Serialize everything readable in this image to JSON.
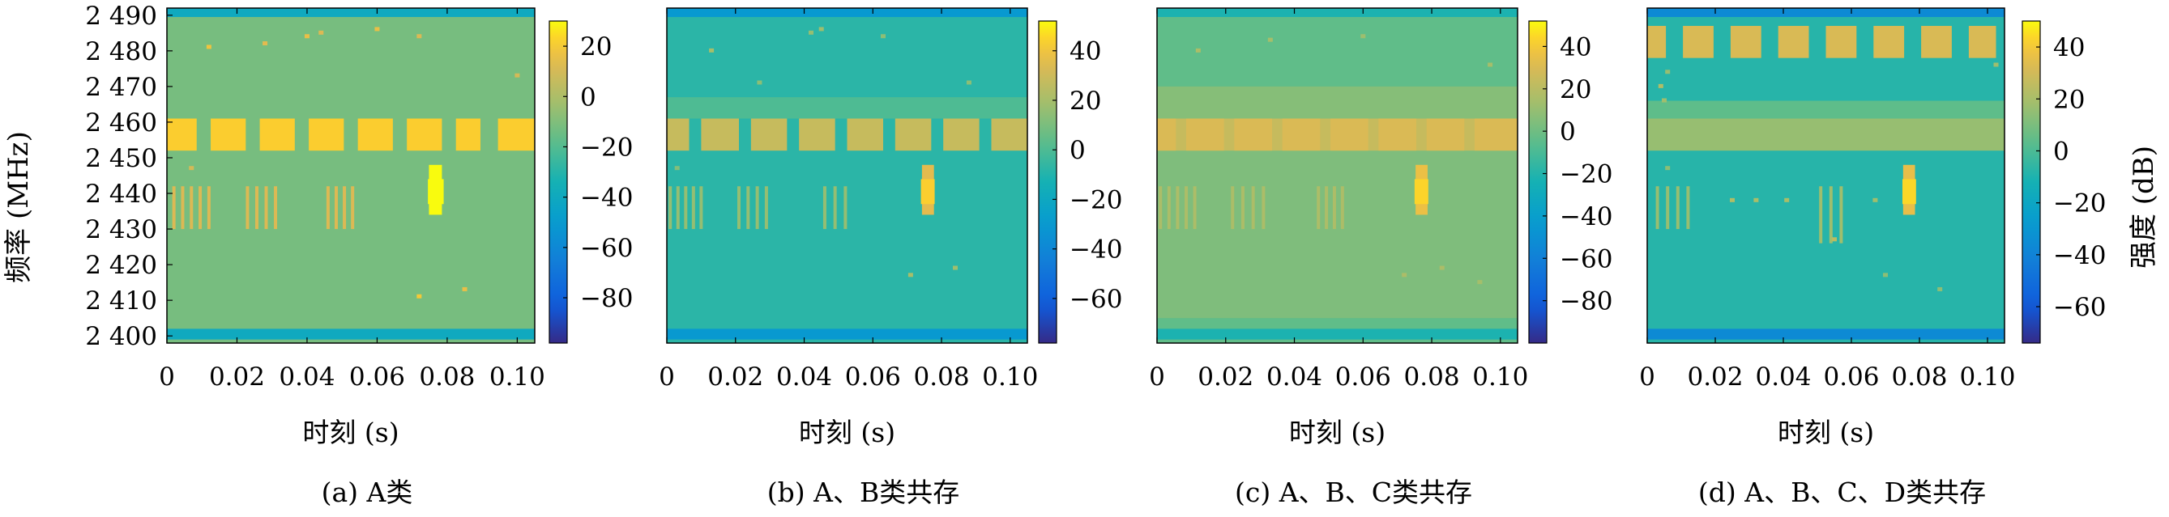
{
  "figure": {
    "y_axis_label": "频率 (MHz)",
    "colorbar_label": "强度 (dB)"
  },
  "chart_data": [
    {
      "type": "heatmap",
      "caption": "(a) A类",
      "xlabel": "时刻 (s)",
      "ylabel": "频率 (MHz)",
      "x_ticks": [
        "0",
        "0.02",
        "0.04",
        "0.06",
        "0.08",
        "0.10"
      ],
      "y_ticks": [
        "2 400",
        "2 410",
        "2 420",
        "2 430",
        "2 440",
        "2 450",
        "2 460",
        "2 470",
        "2 480",
        "2 490"
      ],
      "xlim": [
        0,
        0.105
      ],
      "ylim": [
        2398,
        2492
      ],
      "colorbar": {
        "ticks": [
          "20",
          "0",
          "-20",
          "-40",
          "-60",
          "-80"
        ],
        "range": [
          -98,
          30
        ]
      },
      "background_db": -12,
      "edge_bands": [
        {
          "y": [
            2399,
            2402
          ],
          "value": -40
        },
        {
          "y": [
            2489.5,
            2492
          ],
          "value": -40
        }
      ],
      "shaded_bands": [],
      "bursts": [
        {
          "x": [
            0.0,
            0.0085
          ],
          "y": [
            2452,
            2461
          ],
          "value": 22
        },
        {
          "x": [
            0.0125,
            0.0225
          ],
          "y": [
            2452,
            2461
          ],
          "value": 22
        },
        {
          "x": [
            0.0265,
            0.0365
          ],
          "y": [
            2452,
            2461
          ],
          "value": 22
        },
        {
          "x": [
            0.0405,
            0.0505
          ],
          "y": [
            2452,
            2461
          ],
          "value": 22
        },
        {
          "x": [
            0.0545,
            0.0645
          ],
          "y": [
            2452,
            2461
          ],
          "value": 22
        },
        {
          "x": [
            0.0685,
            0.0785
          ],
          "y": [
            2452,
            2461
          ],
          "value": 22
        },
        {
          "x": [
            0.0825,
            0.0895
          ],
          "y": [
            2452,
            2461
          ],
          "value": 22
        },
        {
          "x": [
            0.0945,
            0.105
          ],
          "y": [
            2452,
            2461
          ],
          "value": 22
        },
        {
          "x": [
            0.0748,
            0.0785
          ],
          "y": [
            2434,
            2448
          ],
          "value": 32
        },
        {
          "x": [
            0.0745,
            0.079
          ],
          "y": [
            2437,
            2444
          ],
          "value": 38
        }
      ],
      "stripe_groups": [
        {
          "x": [
            0.002,
            0.012
          ],
          "y": [
            2430,
            2442
          ],
          "n": 5,
          "value": 12
        },
        {
          "x": [
            0.023,
            0.031
          ],
          "y": [
            2430,
            2442
          ],
          "n": 4,
          "value": 12
        },
        {
          "x": [
            0.046,
            0.053
          ],
          "y": [
            2430,
            2442
          ],
          "n": 4,
          "value": 12
        }
      ],
      "speckles": [
        {
          "x": 0.012,
          "y": 2481,
          "value": 18
        },
        {
          "x": 0.028,
          "y": 2482,
          "value": 14
        },
        {
          "x": 0.04,
          "y": 2484,
          "value": 16
        },
        {
          "x": 0.044,
          "y": 2485,
          "value": 12
        },
        {
          "x": 0.06,
          "y": 2486,
          "value": 16
        },
        {
          "x": 0.072,
          "y": 2484,
          "value": 12
        },
        {
          "x": 0.1,
          "y": 2473,
          "value": 10
        },
        {
          "x": 0.007,
          "y": 2447,
          "value": 10
        },
        {
          "x": 0.072,
          "y": 2411,
          "value": 20
        },
        {
          "x": 0.085,
          "y": 2413,
          "value": 16
        }
      ]
    },
    {
      "type": "heatmap",
      "caption": "(b) A、B类共存",
      "xlabel": "时刻 (s)",
      "ylabel": "",
      "x_ticks": [
        "0",
        "0.02",
        "0.04",
        "0.06",
        "0.08",
        "0.10"
      ],
      "y_ticks": [],
      "xlim": [
        0,
        0.105
      ],
      "ylim": [
        2398,
        2492
      ],
      "colorbar": {
        "ticks": [
          "40",
          "20",
          "0",
          "-20",
          "-40",
          "-60"
        ],
        "range": [
          -78,
          52
        ]
      },
      "background_db": -8,
      "edge_bands": [
        {
          "y": [
            2399,
            2402
          ],
          "value": -30
        },
        {
          "y": [
            2489.5,
            2492
          ],
          "value": -30
        }
      ],
      "shaded_bands": [
        {
          "y": [
            2461,
            2467
          ],
          "value": 0
        }
      ],
      "bursts": [
        {
          "x": [
            0.0,
            0.0065
          ],
          "y": [
            2452,
            2461
          ],
          "value": 28
        },
        {
          "x": [
            0.01,
            0.021
          ],
          "y": [
            2452,
            2461
          ],
          "value": 28
        },
        {
          "x": [
            0.0245,
            0.035
          ],
          "y": [
            2452,
            2461
          ],
          "value": 28
        },
        {
          "x": [
            0.0385,
            0.049
          ],
          "y": [
            2452,
            2461
          ],
          "value": 28
        },
        {
          "x": [
            0.0525,
            0.063
          ],
          "y": [
            2452,
            2461
          ],
          "value": 28
        },
        {
          "x": [
            0.0665,
            0.077
          ],
          "y": [
            2452,
            2461
          ],
          "value": 28
        },
        {
          "x": [
            0.0805,
            0.091
          ],
          "y": [
            2452,
            2461
          ],
          "value": 28
        },
        {
          "x": [
            0.0945,
            0.105
          ],
          "y": [
            2452,
            2461
          ],
          "value": 28
        },
        {
          "x": [
            0.0743,
            0.0778
          ],
          "y": [
            2434,
            2448
          ],
          "value": 36
        },
        {
          "x": [
            0.074,
            0.078
          ],
          "y": [
            2437,
            2444
          ],
          "value": 44
        }
      ],
      "stripe_groups": [
        {
          "x": [
            0.001,
            0.01
          ],
          "y": [
            2430,
            2442
          ],
          "n": 5,
          "value": 16
        },
        {
          "x": [
            0.021,
            0.029
          ],
          "y": [
            2430,
            2442
          ],
          "n": 4,
          "value": 16
        },
        {
          "x": [
            0.046,
            0.052
          ],
          "y": [
            2430,
            2442
          ],
          "n": 3,
          "value": 16
        }
      ],
      "speckles": [
        {
          "x": 0.013,
          "y": 2480,
          "value": 20
        },
        {
          "x": 0.042,
          "y": 2485,
          "value": 16
        },
        {
          "x": 0.045,
          "y": 2486,
          "value": 18
        },
        {
          "x": 0.063,
          "y": 2484,
          "value": 14
        },
        {
          "x": 0.027,
          "y": 2471,
          "value": 14
        },
        {
          "x": 0.088,
          "y": 2471,
          "value": 14
        },
        {
          "x": 0.003,
          "y": 2447,
          "value": 12
        },
        {
          "x": 0.071,
          "y": 2417,
          "value": 20
        },
        {
          "x": 0.084,
          "y": 2419,
          "value": 18
        }
      ]
    },
    {
      "type": "heatmap",
      "caption": "(c) A、B、C类共存",
      "xlabel": "时刻 (s)",
      "ylabel": "",
      "x_ticks": [
        "0",
        "0.02",
        "0.04",
        "0.06",
        "0.08",
        "0.10"
      ],
      "y_ticks": [],
      "xlim": [
        0,
        0.105
      ],
      "ylim": [
        2398,
        2492
      ],
      "colorbar": {
        "ticks": [
          "40",
          "20",
          "0",
          "-20",
          "-40",
          "-60",
          "-80"
        ],
        "range": [
          -100,
          52
        ]
      },
      "background_db": -4,
      "edge_bands": [
        {
          "y": [
            2399,
            2402
          ],
          "value": -22
        },
        {
          "y": [
            2489.5,
            2492
          ],
          "value": -22
        }
      ],
      "shaded_bands": [
        {
          "y": [
            2405,
            2452
          ],
          "value": 4
        },
        {
          "y": [
            2461,
            2470
          ],
          "value": 6
        }
      ],
      "bursts": [
        {
          "x": [
            0.0,
            0.105
          ],
          "y": [
            2452,
            2461
          ],
          "value": 24
        },
        {
          "x": [
            0.0,
            0.0055
          ],
          "y": [
            2452,
            2461
          ],
          "value": 30
        },
        {
          "x": [
            0.0085,
            0.0195
          ],
          "y": [
            2452,
            2461
          ],
          "value": 30
        },
        {
          "x": [
            0.0225,
            0.0335
          ],
          "y": [
            2452,
            2461
          ],
          "value": 30
        },
        {
          "x": [
            0.0365,
            0.0475
          ],
          "y": [
            2452,
            2461
          ],
          "value": 30
        },
        {
          "x": [
            0.0505,
            0.0615
          ],
          "y": [
            2452,
            2461
          ],
          "value": 30
        },
        {
          "x": [
            0.0645,
            0.0755
          ],
          "y": [
            2452,
            2461
          ],
          "value": 30
        },
        {
          "x": [
            0.0785,
            0.0895
          ],
          "y": [
            2452,
            2461
          ],
          "value": 30
        },
        {
          "x": [
            0.0925,
            0.105
          ],
          "y": [
            2452,
            2461
          ],
          "value": 30
        },
        {
          "x": [
            0.0753,
            0.0788
          ],
          "y": [
            2434,
            2448
          ],
          "value": 36
        },
        {
          "x": [
            0.075,
            0.079
          ],
          "y": [
            2437,
            2444
          ],
          "value": 44
        }
      ],
      "stripe_groups": [
        {
          "x": [
            0.001,
            0.011
          ],
          "y": [
            2430,
            2442
          ],
          "n": 5,
          "value": 16
        },
        {
          "x": [
            0.022,
            0.031
          ],
          "y": [
            2430,
            2442
          ],
          "n": 4,
          "value": 16
        },
        {
          "x": [
            0.047,
            0.054
          ],
          "y": [
            2430,
            2442
          ],
          "n": 4,
          "value": 16
        }
      ],
      "speckles": [
        {
          "x": 0.012,
          "y": 2480,
          "value": 16
        },
        {
          "x": 0.033,
          "y": 2483,
          "value": 14
        },
        {
          "x": 0.06,
          "y": 2484,
          "value": 12
        },
        {
          "x": 0.097,
          "y": 2476,
          "value": 14
        },
        {
          "x": 0.072,
          "y": 2417,
          "value": 16
        },
        {
          "x": 0.083,
          "y": 2419,
          "value": 16
        },
        {
          "x": 0.094,
          "y": 2415,
          "value": 14
        }
      ]
    },
    {
      "type": "heatmap",
      "caption": "(d) A、B、C、D类共存",
      "xlabel": "时刻 (s)",
      "ylabel": "",
      "x_ticks": [
        "0",
        "0.02",
        "0.04",
        "0.06",
        "0.08",
        "0.10"
      ],
      "y_ticks": [],
      "xlim": [
        0,
        0.105
      ],
      "ylim": [
        2398,
        2492
      ],
      "colorbar": {
        "ticks": [
          "40",
          "20",
          "0",
          "-20",
          "-40",
          "-60"
        ],
        "range": [
          -74,
          50
        ]
      },
      "background_db": -8,
      "edge_bands": [
        {
          "y": [
            2399,
            2402
          ],
          "value": -36
        },
        {
          "y": [
            2489.5,
            2492
          ],
          "value": -36
        }
      ],
      "shaded_bands": [
        {
          "y": [
            2461,
            2466
          ],
          "value": 4
        },
        {
          "y": [
            2452,
            2461
          ],
          "value": 16
        }
      ],
      "bursts": [
        {
          "x": [
            0.0,
            0.0055
          ],
          "y": [
            2478,
            2487
          ],
          "value": 32
        },
        {
          "x": [
            0.0105,
            0.0195
          ],
          "y": [
            2478,
            2487
          ],
          "value": 32
        },
        {
          "x": [
            0.0245,
            0.0335
          ],
          "y": [
            2478,
            2487
          ],
          "value": 32
        },
        {
          "x": [
            0.0385,
            0.0475
          ],
          "y": [
            2478,
            2487
          ],
          "value": 32
        },
        {
          "x": [
            0.0525,
            0.0615
          ],
          "y": [
            2478,
            2487
          ],
          "value": 32
        },
        {
          "x": [
            0.0665,
            0.0755
          ],
          "y": [
            2478,
            2487
          ],
          "value": 32
        },
        {
          "x": [
            0.0805,
            0.0895
          ],
          "y": [
            2478,
            2487
          ],
          "value": 32
        },
        {
          "x": [
            0.0945,
            0.1025
          ],
          "y": [
            2478,
            2487
          ],
          "value": 32
        },
        {
          "x": [
            0.0752,
            0.0787
          ],
          "y": [
            2434,
            2448
          ],
          "value": 36
        },
        {
          "x": [
            0.075,
            0.079
          ],
          "y": [
            2437,
            2444
          ],
          "value": 44
        }
      ],
      "stripe_groups": [
        {
          "x": [
            0.003,
            0.012
          ],
          "y": [
            2430,
            2442
          ],
          "n": 4,
          "value": 16
        },
        {
          "x": [
            0.051,
            0.057
          ],
          "y": [
            2426,
            2442
          ],
          "n": 3,
          "value": 18
        }
      ],
      "speckles": [
        {
          "x": 0.004,
          "y": 2470,
          "value": 22
        },
        {
          "x": 0.005,
          "y": 2466,
          "value": 18
        },
        {
          "x": 0.006,
          "y": 2474,
          "value": 16
        },
        {
          "x": 0.006,
          "y": 2447,
          "value": 14
        },
        {
          "x": 0.025,
          "y": 2438,
          "value": 22
        },
        {
          "x": 0.032,
          "y": 2438,
          "value": 20
        },
        {
          "x": 0.041,
          "y": 2438,
          "value": 20
        },
        {
          "x": 0.067,
          "y": 2438,
          "value": 18
        },
        {
          "x": 0.055,
          "y": 2427,
          "value": 24
        },
        {
          "x": 0.07,
          "y": 2417,
          "value": 14
        },
        {
          "x": 0.086,
          "y": 2413,
          "value": 14
        },
        {
          "x": 0.1025,
          "y": 2476,
          "value": 18
        }
      ]
    }
  ]
}
